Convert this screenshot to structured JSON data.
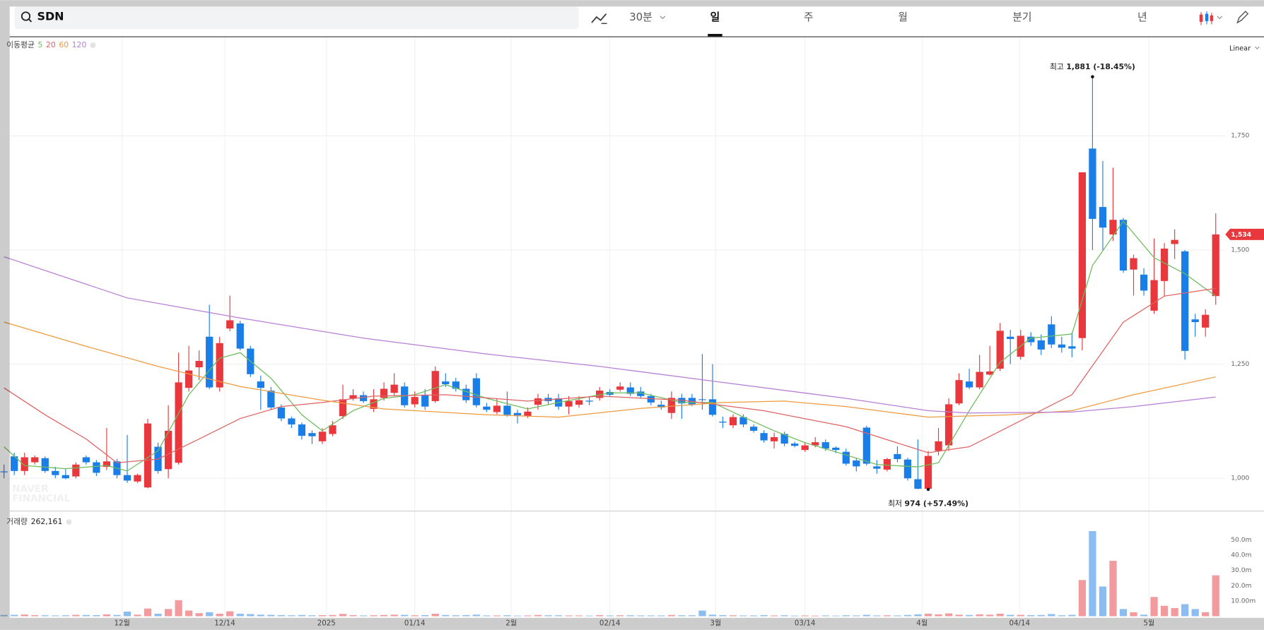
{
  "chart_data": {
    "type": "candlestick",
    "symbol": "SDN",
    "toolbar": [
      "30분",
      "일",
      "주",
      "월",
      "분기",
      "년"
    ],
    "selected_period_index": 1,
    "scale_label": "Linear",
    "ma_legend_label": "이동평균",
    "volume_label": "거래량",
    "volume_total": {
      "value": 262161,
      "label": "262,161"
    },
    "watermark": [
      "NAVER",
      "FINANCIAL"
    ],
    "up_color": "#e8383d",
    "down_color": "#1a7ee8",
    "grid": true,
    "xlim": [
      -0.39,
      122.7
    ],
    "xticks": [
      {
        "value": 11.5,
        "label": "12월"
      },
      {
        "value": 21.5,
        "label": "12/14"
      },
      {
        "value": 31.4,
        "label": "2025"
      },
      {
        "value": 40,
        "label": "01/14"
      },
      {
        "value": 49.4,
        "label": "2월"
      },
      {
        "value": 59,
        "label": "02/14"
      },
      {
        "value": 69.3,
        "label": "3월"
      },
      {
        "value": 78,
        "label": "03/14"
      },
      {
        "value": 89.4,
        "label": "4월"
      },
      {
        "value": 98.9,
        "label": "04/14"
      },
      {
        "value": 111.5,
        "label": "5월"
      }
    ],
    "ylim": [
      929,
      1966
    ],
    "yticks": [
      {
        "value": 1000,
        "label": "1,000"
      },
      {
        "value": 1250,
        "label": "1,250"
      },
      {
        "value": 1500,
        "label": "1,500"
      },
      {
        "value": 1750,
        "label": "1,750"
      }
    ],
    "open": [
      1015,
      1048,
      1016,
      1035,
      1044,
      1016,
      1007,
      1004,
      1046,
      1035,
      1025,
      1037,
      1007,
      993,
      980,
      1069,
      1020,
      1034,
      1198,
      1243,
      1310,
      1199,
      1328,
      1339,
      1284,
      1212,
      1192,
      1155,
      1131,
      1118,
      1099,
      1081,
      1097,
      1136,
      1175,
      1182,
      1152,
      1176,
      1187,
      1201,
      1162,
      1183,
      1169,
      1212,
      1212,
      1196,
      1219,
      1157,
      1145,
      1159,
      1143,
      1136,
      1161,
      1176,
      1175,
      1157,
      1161,
      1170,
      1176,
      1189,
      1194,
      1199,
      1190,
      1180,
      1161,
      1143,
      1176,
      1176,
      1173,
      1173,
      1124,
      1116,
      1134,
      1113,
      1099,
      1081,
      1097,
      1076,
      1062,
      1072,
      1079,
      1067,
      1058,
      1039,
      1111,
      1026,
      1019,
      1053,
      1041,
      998,
      977,
      1060,
      1072,
      1164,
      1212,
      1199,
      1227,
      1240,
      1310,
      1266,
      1310,
      1302,
      1337,
      1293,
      1289,
      1307,
      1722,
      1594,
      1534,
      1566,
      1457,
      1446,
      1367,
      1432,
      1513,
      1497,
      1348,
      1330,
      1399
    ],
    "high": [
      1030,
      1056,
      1056,
      1050,
      1048,
      1025,
      1020,
      1035,
      1050,
      1040,
      1110,
      1042,
      1095,
      1010,
      1130,
      1078,
      1160,
      1275,
      1290,
      1280,
      1380,
      1310,
      1400,
      1345,
      1290,
      1225,
      1200,
      1162,
      1135,
      1122,
      1105,
      1110,
      1125,
      1205,
      1195,
      1190,
      1195,
      1210,
      1230,
      1210,
      1190,
      1195,
      1245,
      1230,
      1220,
      1205,
      1230,
      1165,
      1175,
      1190,
      1150,
      1155,
      1185,
      1185,
      1185,
      1180,
      1180,
      1180,
      1200,
      1195,
      1210,
      1210,
      1200,
      1185,
      1170,
      1190,
      1185,
      1185,
      1272,
      1250,
      1135,
      1140,
      1140,
      1118,
      1105,
      1100,
      1102,
      1080,
      1078,
      1090,
      1085,
      1070,
      1065,
      1045,
      1115,
      1040,
      1045,
      1070,
      1045,
      1085,
      1060,
      1110,
      1175,
      1230,
      1240,
      1270,
      1290,
      1340,
      1325,
      1325,
      1320,
      1315,
      1355,
      1310,
      1320,
      1670,
      1881,
      1695,
      1680,
      1570,
      1490,
      1460,
      1525,
      1515,
      1545,
      1500,
      1360,
      1370,
      1580
    ],
    "low": [
      1000,
      1007,
      1007,
      1030,
      1012,
      1000,
      998,
      1000,
      1030,
      1005,
      1018,
      1000,
      990,
      990,
      978,
      1010,
      1000,
      1030,
      1190,
      1215,
      1195,
      1190,
      1322,
      1280,
      1222,
      1150,
      1150,
      1125,
      1110,
      1085,
      1075,
      1075,
      1092,
      1130,
      1170,
      1165,
      1145,
      1170,
      1180,
      1155,
      1155,
      1150,
      1165,
      1200,
      1190,
      1165,
      1155,
      1145,
      1140,
      1135,
      1120,
      1132,
      1150,
      1160,
      1150,
      1140,
      1155,
      1160,
      1170,
      1178,
      1190,
      1180,
      1175,
      1160,
      1150,
      1130,
      1130,
      1158,
      1150,
      1135,
      1110,
      1110,
      1112,
      1100,
      1078,
      1065,
      1070,
      1068,
      1058,
      1068,
      1060,
      1055,
      1028,
      1015,
      1028,
      1010,
      1015,
      1035,
      995,
      976,
      974,
      1050,
      1060,
      1160,
      1195,
      1195,
      1225,
      1235,
      1250,
      1260,
      1290,
      1270,
      1285,
      1275,
      1265,
      1280,
      1500,
      1500,
      1520,
      1450,
      1400,
      1400,
      1360,
      1400,
      1480,
      1260,
      1310,
      1310,
      1380
    ],
    "close": [
      1015,
      1016,
      1046,
      1046,
      1016,
      1007,
      1000,
      1030,
      1035,
      1012,
      1037,
      1007,
      995,
      1007,
      1120,
      1016,
      1104,
      1210,
      1236,
      1257,
      1199,
      1296,
      1346,
      1284,
      1228,
      1198,
      1155,
      1131,
      1118,
      1093,
      1092,
      1102,
      1116,
      1173,
      1182,
      1169,
      1173,
      1196,
      1205,
      1160,
      1178,
      1157,
      1235,
      1206,
      1196,
      1171,
      1160,
      1150,
      1159,
      1139,
      1138,
      1146,
      1175,
      1169,
      1157,
      1169,
      1171,
      1168,
      1192,
      1183,
      1201,
      1185,
      1180,
      1166,
      1155,
      1176,
      1164,
      1162,
      1173,
      1139,
      1122,
      1134,
      1118,
      1104,
      1083,
      1090,
      1076,
      1071,
      1072,
      1079,
      1065,
      1062,
      1032,
      1026,
      1032,
      1021,
      1042,
      1042,
      1000,
      977,
      1049,
      1081,
      1162,
      1215,
      1199,
      1233,
      1234,
      1323,
      1305,
      1312,
      1298,
      1282,
      1293,
      1286,
      1284,
      1670,
      1568,
      1549,
      1566,
      1455,
      1482,
      1411,
      1434,
      1503,
      1522,
      1279,
      1342,
      1358,
      1534
    ],
    "moving_averages": [
      {
        "name": "5",
        "color": "#6dbb5a",
        "x": [
          0,
          2,
          6,
          10,
          12,
          15,
          18,
          21,
          23,
          26,
          29,
          31,
          34,
          37,
          40,
          43,
          47,
          51,
          54,
          59,
          62,
          66,
          69,
          72,
          75,
          78,
          82,
          85,
          89,
          91,
          94,
          97,
          100,
          104,
          106,
          109,
          112,
          115,
          118
        ],
        "values": [
          1069,
          1028,
          1021,
          1028,
          1016,
          1060,
          1183,
          1263,
          1275,
          1219,
          1139,
          1104,
          1148,
          1175,
          1183,
          1205,
          1175,
          1152,
          1166,
          1187,
          1187,
          1166,
          1166,
          1134,
          1104,
          1078,
          1051,
          1030,
          1025,
          1034,
          1148,
          1254,
          1307,
          1316,
          1466,
          1563,
          1483,
          1448,
          1399
        ]
      },
      {
        "name": "20",
        "color": "#e06262",
        "x": [
          0,
          4,
          8,
          11,
          15,
          19,
          23,
          27,
          31,
          36,
          43,
          51,
          58,
          66,
          74,
          82,
          90,
          94,
          104,
          109,
          113,
          118
        ],
        "values": [
          1198,
          1139,
          1086,
          1034,
          1042,
          1086,
          1131,
          1157,
          1166,
          1180,
          1183,
          1169,
          1180,
          1171,
          1148,
          1113,
          1056,
          1069,
          1183,
          1342,
          1399,
          1416
        ]
      },
      {
        "name": "60",
        "color": "#ee9a3e",
        "x": [
          0,
          8,
          15,
          23,
          31,
          37,
          47,
          54,
          62,
          70,
          76,
          82,
          90,
          98,
          104,
          110,
          118
        ],
        "values": [
          1342,
          1289,
          1245,
          1201,
          1171,
          1152,
          1139,
          1134,
          1153,
          1166,
          1169,
          1157,
          1134,
          1139,
          1148,
          1183,
          1222
        ]
      },
      {
        "name": "120",
        "color": "#b77ed6",
        "x": [
          0,
          12,
          23,
          35,
          47,
          58,
          70,
          82,
          90,
          94,
          104,
          110,
          118
        ],
        "values": [
          1485,
          1395,
          1351,
          1307,
          1272,
          1245,
          1210,
          1175,
          1148,
          1143,
          1145,
          1157,
          1178
        ]
      }
    ],
    "volume": {
      "up_color": "#f29a9d",
      "down_color": "#8cbdf0",
      "ylim": [
        0,
        66
      ],
      "yticks": [
        {
          "value": 10,
          "label": "10.00m"
        },
        {
          "value": 20,
          "label": "20.0m"
        },
        {
          "value": 30,
          "label": "30.0m"
        },
        {
          "value": 40,
          "label": "40.0m"
        },
        {
          "value": 50,
          "label": "50.0m"
        }
      ],
      "values": [
        0.8,
        0.9,
        1.1,
        0.7,
        0.6,
        0.5,
        0.6,
        0.9,
        0.8,
        0.7,
        1.2,
        0.8,
        3.0,
        1.0,
        5.0,
        1.6,
        4.7,
        10.5,
        3.7,
        2.0,
        2.6,
        1.6,
        3.2,
        1.6,
        1.4,
        1.0,
        0.9,
        0.7,
        0.6,
        0.8,
        0.6,
        0.7,
        0.8,
        1.5,
        0.7,
        0.5,
        0.6,
        0.8,
        1.0,
        0.9,
        0.6,
        0.7,
        1.6,
        0.8,
        0.6,
        0.7,
        1.0,
        0.5,
        0.5,
        0.6,
        0.4,
        0.5,
        0.8,
        0.6,
        0.6,
        0.5,
        0.5,
        0.4,
        0.7,
        0.5,
        0.6,
        0.6,
        0.5,
        0.5,
        0.5,
        0.8,
        0.6,
        0.6,
        3.7,
        1.0,
        0.7,
        0.6,
        0.5,
        0.5,
        0.7,
        0.5,
        0.6,
        0.4,
        0.5,
        0.4,
        0.5,
        0.4,
        0.6,
        0.5,
        0.9,
        0.5,
        0.6,
        0.5,
        0.8,
        1.2,
        1.6,
        1.2,
        1.8,
        1.0,
        0.8,
        1.2,
        1.0,
        1.6,
        0.9,
        0.9,
        0.7,
        0.8,
        1.4,
        0.6,
        0.9,
        23.7,
        55.8,
        19.5,
        36.3,
        4.7,
        2.6,
        1.0,
        12.6,
        6.8,
        5.3,
        7.9,
        4.7,
        2.6,
        26.8
      ]
    },
    "high_annotation": {
      "label": "최고",
      "text": "1,881 (-18.45%)"
    },
    "low_annotation": {
      "label": "최저",
      "text": "974 (+57.49%)"
    },
    "last_price": {
      "value": 1534,
      "label": "1,534"
    }
  }
}
